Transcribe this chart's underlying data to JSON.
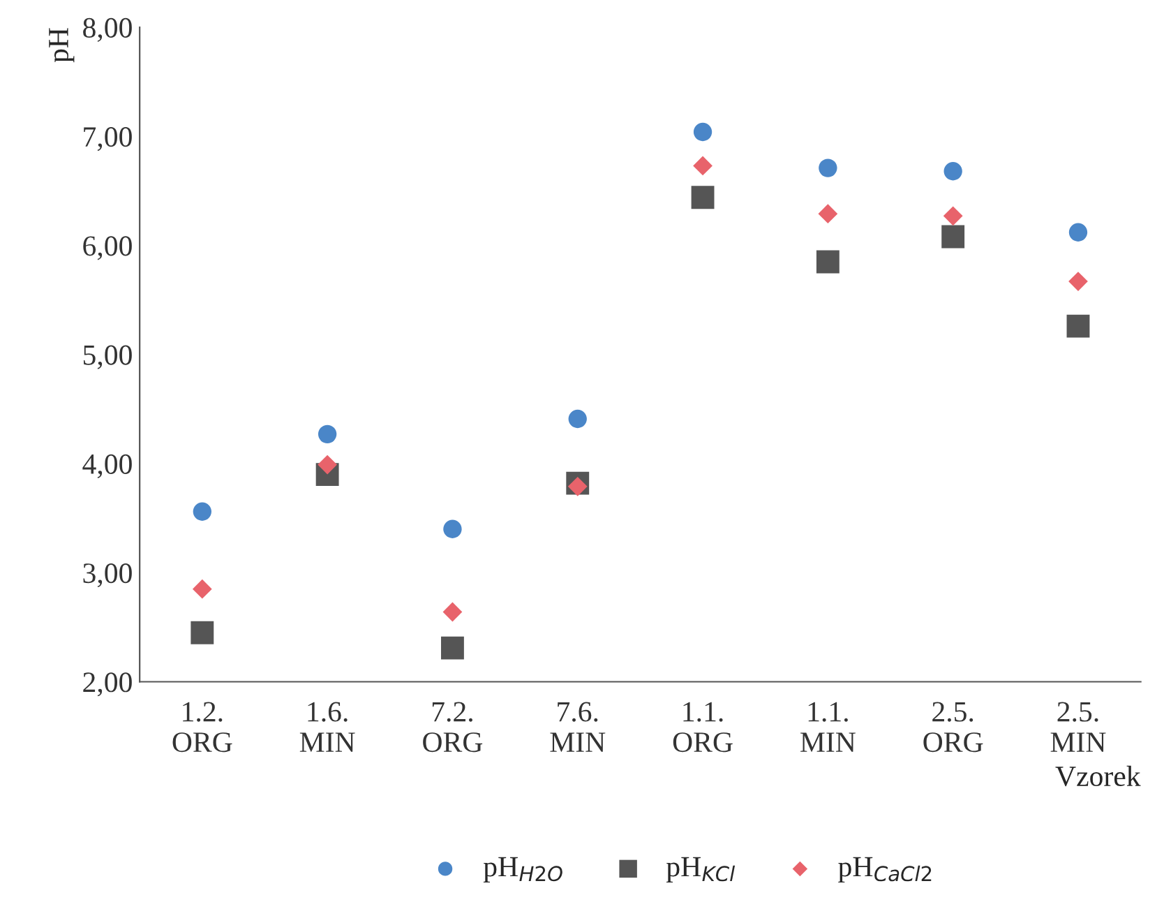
{
  "chart_data": {
    "type": "scatter",
    "ylabel": "pH",
    "xlabel": "Vzorek",
    "categories": [
      "1.2.\nORG",
      "1.6.\nMIN",
      "7.2.\nORG",
      "7.6.\nMIN",
      "1.1.\nORG",
      "1.1.\nMIN",
      "2.5.\nORG",
      "2.5.\nMIN"
    ],
    "series": [
      {
        "name": "pH$_{H2O}$",
        "color": "#4a86c8",
        "marker": "circle",
        "values": [
          3.56,
          4.27,
          3.4,
          4.41,
          7.04,
          6.71,
          6.68,
          6.12
        ]
      },
      {
        "name": "pH$_{KCl}$",
        "color": "#555555",
        "marker": "square",
        "values": [
          2.45,
          3.9,
          2.31,
          3.82,
          6.44,
          5.85,
          6.08,
          5.26
        ]
      },
      {
        "name": "pH$_{CaCl2}$",
        "color": "#e8636b",
        "marker": "diamond",
        "values": [
          2.85,
          3.99,
          2.64,
          3.79,
          6.73,
          6.29,
          6.27,
          5.67
        ]
      }
    ],
    "ylim": [
      2,
      8
    ],
    "yticks": [
      {
        "value": 2,
        "label": "2,00"
      },
      {
        "value": 3,
        "label": "3,00"
      },
      {
        "value": 4,
        "label": "4,00"
      },
      {
        "value": 5,
        "label": "5,00"
      },
      {
        "value": 6,
        "label": "6,00"
      },
      {
        "value": 7,
        "label": "7,00"
      },
      {
        "value": 8,
        "label": "8,00"
      }
    ],
    "grid": false,
    "legend": "bottom"
  }
}
